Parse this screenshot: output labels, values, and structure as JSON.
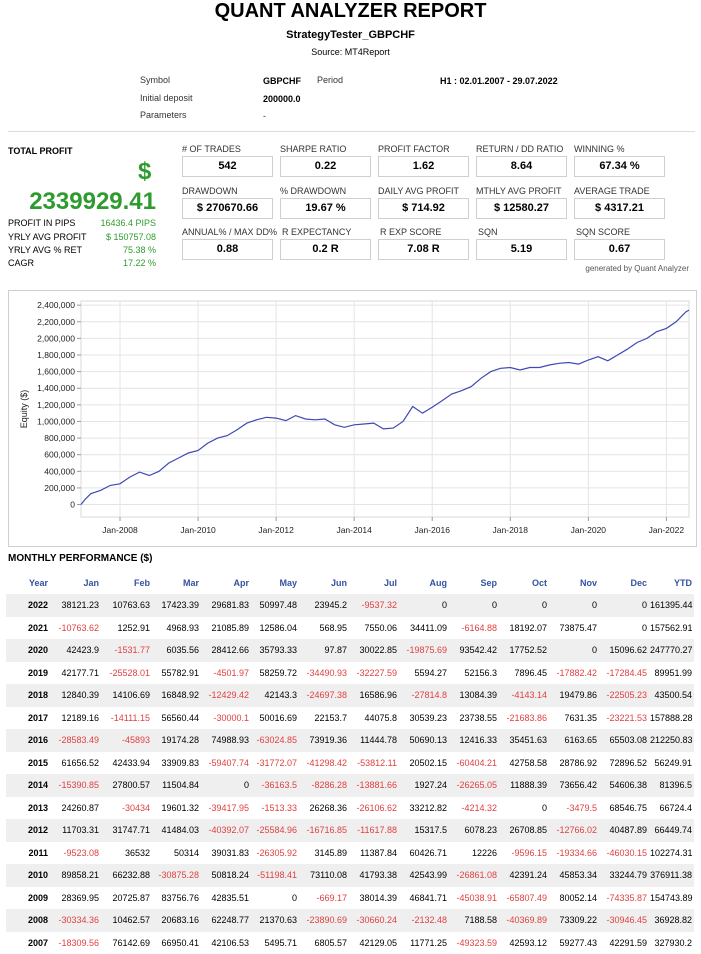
{
  "report": {
    "title": "QUANT ANALYZER REPORT",
    "subtitle": "StrategyTester_GBPCHF",
    "source": "Source: MT4Report"
  },
  "info": {
    "symbol_label": "Symbol",
    "symbol_value": "GBPCHF",
    "period_label": "Period",
    "period_value": "H1 : 02.01.2007 - 29.07.2022",
    "deposit_label": "Initial deposit",
    "deposit_value": "200000.0",
    "params_label": "Parameters",
    "params_value": "-"
  },
  "summary": {
    "total_label": "TOTAL PROFIT",
    "currency": "$",
    "total_value": "2339929.41",
    "stats": [
      {
        "label": "PROFIT IN PIPS",
        "value": "16436.4 PIPS"
      },
      {
        "label": "YRLY AVG PROFIT",
        "value": "$ 150757.08"
      },
      {
        "label": "YRLY AVG % RET",
        "value": "75.38 %"
      },
      {
        "label": "CAGR",
        "value": "17.22 %"
      }
    ]
  },
  "metrics": [
    [
      {
        "label": "# OF TRADES",
        "value": "542"
      },
      {
        "label": "SHARPE RATIO",
        "value": "0.22"
      },
      {
        "label": "PROFIT FACTOR",
        "value": "1.62"
      },
      {
        "label": "RETURN / DD RATIO",
        "value": "8.64"
      },
      {
        "label": "WINNING %",
        "value": "67.34 %"
      }
    ],
    [
      {
        "label": "DRAWDOWN",
        "value": "$ 270670.66"
      },
      {
        "label": "% DRAWDOWN",
        "value": "19.67 %"
      },
      {
        "label": "DAILY AVG PROFIT",
        "value": "$ 714.92"
      },
      {
        "label": "MTHLY AVG PROFIT",
        "value": "$ 12580.27"
      },
      {
        "label": "AVERAGE TRADE",
        "value": "$ 4317.21"
      }
    ],
    [
      {
        "label": "ANNUAL% / MAX DD%",
        "value": "0.88"
      },
      {
        "label": "R EXPECTANCY",
        "value": "0.2 R"
      },
      {
        "label": "R EXP SCORE",
        "value": "7.08 R"
      },
      {
        "label": "SQN",
        "value": "5.19"
      },
      {
        "label": "SQN SCORE",
        "value": "0.67"
      }
    ]
  ],
  "generated_by": "generated by Quant Analyzer",
  "chart_data": {
    "type": "line",
    "ylabel": "Equity ($)",
    "xlabel": "",
    "ylim": [
      -150000,
      2450000
    ],
    "xlim": [
      2007.0,
      2022.58
    ],
    "y_ticks": [
      0,
      200000,
      400000,
      600000,
      800000,
      1000000,
      1200000,
      1400000,
      1600000,
      1800000,
      2000000,
      2200000,
      2400000
    ],
    "y_tick_labels": [
      "0",
      "200,000",
      "400,000",
      "600,000",
      "800,000",
      "1,000,000",
      "1,200,000",
      "1,400,000",
      "1,600,000",
      "1,800,000",
      "2,000,000",
      "2,200,000",
      "2,400,000"
    ],
    "x_ticks": [
      2008,
      2010,
      2012,
      2014,
      2016,
      2018,
      2020,
      2022
    ],
    "x_tick_labels": [
      "Jan-2008",
      "Jan-2010",
      "Jan-2012",
      "Jan-2014",
      "Jan-2016",
      "Jan-2018",
      "Jan-2020",
      "Jan-2022"
    ],
    "grid": true,
    "color": "#3f48b5",
    "x": [
      2007.0,
      2007.1,
      2007.25,
      2007.5,
      2007.75,
      2008.0,
      2008.25,
      2008.5,
      2008.75,
      2009.0,
      2009.25,
      2009.5,
      2009.75,
      2010.0,
      2010.25,
      2010.5,
      2010.75,
      2011.0,
      2011.25,
      2011.5,
      2011.75,
      2012.0,
      2012.25,
      2012.5,
      2012.75,
      2013.0,
      2013.25,
      2013.5,
      2013.75,
      2014.0,
      2014.25,
      2014.5,
      2014.75,
      2015.0,
      2015.25,
      2015.5,
      2015.75,
      2016.0,
      2016.25,
      2016.5,
      2016.75,
      2017.0,
      2017.25,
      2017.5,
      2017.75,
      2018.0,
      2018.25,
      2018.5,
      2018.75,
      2019.0,
      2019.25,
      2019.5,
      2019.75,
      2020.0,
      2020.25,
      2020.5,
      2020.75,
      2021.0,
      2021.25,
      2021.5,
      2021.75,
      2022.0,
      2022.25,
      2022.5,
      2022.58
    ],
    "y": [
      0,
      60000,
      130000,
      170000,
      230000,
      250000,
      330000,
      390000,
      350000,
      400000,
      500000,
      560000,
      620000,
      650000,
      740000,
      800000,
      830000,
      900000,
      980000,
      1020000,
      1050000,
      1040000,
      1010000,
      1070000,
      1030000,
      1020000,
      1030000,
      960000,
      930000,
      960000,
      970000,
      980000,
      910000,
      920000,
      1000000,
      1180000,
      1100000,
      1170000,
      1250000,
      1330000,
      1370000,
      1420000,
      1520000,
      1600000,
      1640000,
      1650000,
      1620000,
      1650000,
      1650000,
      1680000,
      1700000,
      1710000,
      1690000,
      1740000,
      1780000,
      1730000,
      1800000,
      1870000,
      1950000,
      2000000,
      2080000,
      2120000,
      2200000,
      2320000,
      2340000
    ]
  },
  "monthly": {
    "title": "MONTHLY PERFORMANCE ($)",
    "headers": [
      "Year",
      "Jan",
      "Feb",
      "Mar",
      "Apr",
      "May",
      "Jun",
      "Jul",
      "Aug",
      "Sep",
      "Oct",
      "Nov",
      "Dec",
      "YTD"
    ],
    "rows": [
      [
        "2022",
        "38121.23",
        "10763.63",
        "17423.39",
        "29681.83",
        "50997.48",
        "23945.2",
        "-9537.32",
        "0",
        "0",
        "0",
        "0",
        "0",
        "161395.44"
      ],
      [
        "2021",
        "-10763.62",
        "1252.91",
        "4968.93",
        "21085.89",
        "12586.04",
        "568.95",
        "7550.06",
        "34411.09",
        "-6164.88",
        "18192.07",
        "73875.47",
        "0",
        "157562.91"
      ],
      [
        "2020",
        "42423.9",
        "-1531.77",
        "6035.56",
        "28412.66",
        "35793.33",
        "97.87",
        "30022.85",
        "-19875.69",
        "93542.42",
        "17752.52",
        "0",
        "15096.62",
        "247770.27"
      ],
      [
        "2019",
        "42177.71",
        "-25528.01",
        "55782.91",
        "-4501.97",
        "58259.72",
        "-34490.93",
        "-32227.59",
        "5594.27",
        "52156.3",
        "7896.45",
        "-17882.42",
        "-17284.45",
        "89951.99"
      ],
      [
        "2018",
        "12840.39",
        "14106.69",
        "16848.92",
        "-12429.42",
        "42143.3",
        "-24697.38",
        "16586.96",
        "-27814.8",
        "13084.39",
        "-4143.14",
        "19479.86",
        "-22505.23",
        "43500.54"
      ],
      [
        "2017",
        "12189.16",
        "-14111.15",
        "56560.44",
        "-30000.1",
        "50016.69",
        "22153.7",
        "44075.8",
        "30539.23",
        "23738.55",
        "-21683.86",
        "7631.35",
        "-23221.53",
        "157888.28"
      ],
      [
        "2016",
        "-28583.49",
        "-45893",
        "19174.28",
        "74988.93",
        "-63024.85",
        "73919.36",
        "11444.78",
        "50690.13",
        "12416.33",
        "35451.63",
        "6163.65",
        "65503.08",
        "212250.83"
      ],
      [
        "2015",
        "61656.52",
        "42433.94",
        "33909.83",
        "-59407.74",
        "-31772.07",
        "-41298.42",
        "-53812.11",
        "20502.15",
        "-60404.21",
        "42758.58",
        "28786.92",
        "72896.52",
        "56249.91"
      ],
      [
        "2014",
        "-15390.85",
        "27800.57",
        "11504.84",
        "0",
        "-36163.5",
        "-8286.28",
        "-13881.66",
        "1927.24",
        "-26265.05",
        "11888.39",
        "73656.42",
        "54606.38",
        "81396.5"
      ],
      [
        "2013",
        "24260.87",
        "-30434",
        "19601.32",
        "-39417.95",
        "-1513.33",
        "26268.36",
        "-26106.62",
        "33212.82",
        "-4214.32",
        "0",
        "-3479.5",
        "68546.75",
        "66724.4"
      ],
      [
        "2012",
        "11703.31",
        "31747.71",
        "41484.03",
        "-40392.07",
        "-25584.96",
        "-16716.85",
        "-11617.88",
        "15317.5",
        "6078.23",
        "26708.85",
        "-12766.02",
        "40487.89",
        "66449.74"
      ],
      [
        "2011",
        "-9523.08",
        "36532",
        "50314",
        "39031.83",
        "-26305.92",
        "3145.89",
        "11387.84",
        "60426.71",
        "12226",
        "-9596.15",
        "-19334.66",
        "-46030.15",
        "102274.31"
      ],
      [
        "2010",
        "89858.21",
        "66232.88",
        "-30875.28",
        "50818.24",
        "-51198.41",
        "73110.08",
        "41793.38",
        "42543.99",
        "-26861.08",
        "42391.24",
        "45853.34",
        "33244.79",
        "376911.38"
      ],
      [
        "2009",
        "28369.95",
        "20725.87",
        "83756.76",
        "42835.51",
        "0",
        "-669.17",
        "38014.39",
        "46841.71",
        "-45038.91",
        "-65807.49",
        "80052.14",
        "-74335.87",
        "154743.89"
      ],
      [
        "2008",
        "-30334.36",
        "10462.57",
        "20683.16",
        "62248.77",
        "21370.63",
        "-23890.69",
        "-30660.24",
        "-2132.48",
        "7188.58",
        "-40369.89",
        "73309.22",
        "-30946.45",
        "36928.82"
      ],
      [
        "2007",
        "-18309.56",
        "76142.69",
        "66950.41",
        "42106.53",
        "5495.71",
        "6805.57",
        "42129.05",
        "11771.25",
        "-49323.59",
        "42593.12",
        "59277.43",
        "42291.59",
        "327930.2"
      ]
    ]
  }
}
